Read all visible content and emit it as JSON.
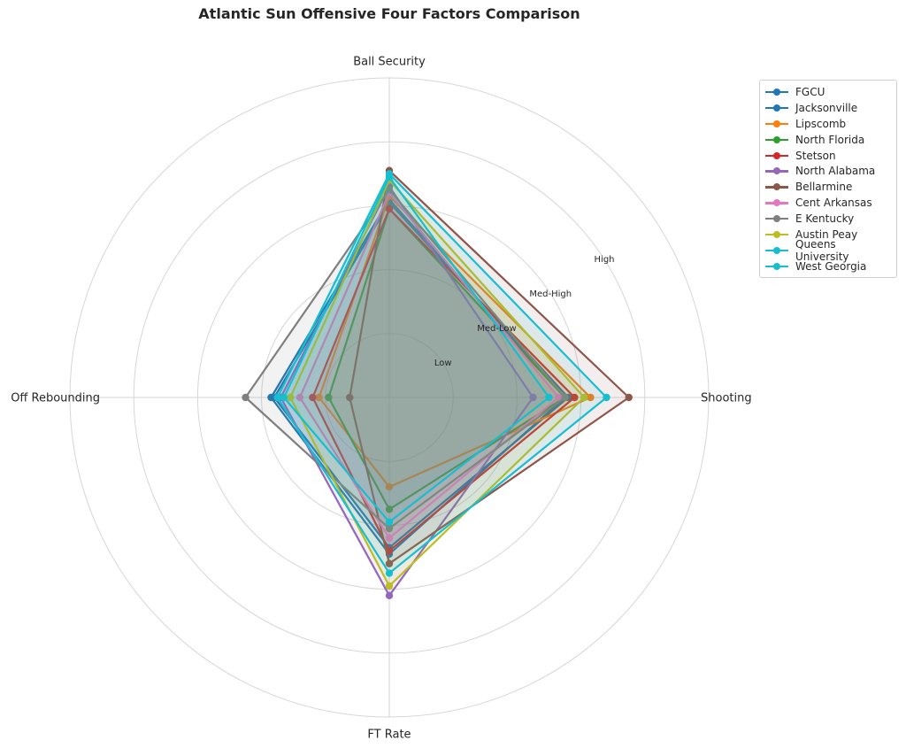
{
  "chart_data": {
    "type": "radar",
    "title": "Atlantic Sun Offensive Four Factors Comparison",
    "axes": [
      "Ball Security",
      "Shooting",
      "FT Rate",
      "Off Rebounding"
    ],
    "radial_labels": [
      "Low",
      "Med-Low",
      "Med-High",
      "High"
    ],
    "radial_ticks": [
      1,
      2,
      3,
      4
    ],
    "ylim": [
      0,
      5
    ],
    "grid": true,
    "legend_position": "upper-right, outside plot",
    "series": [
      {
        "name": "FGCU",
        "color": "#1f77b4",
        "values": [
          3.05,
          2.8,
          2.35,
          1.8
        ]
      },
      {
        "name": "Jacksonville",
        "color": "#1f77b4",
        "values": [
          3.1,
          2.75,
          2.45,
          1.85
        ]
      },
      {
        "name": "Lipscomb",
        "color": "#ff7f0e",
        "values": [
          3.15,
          3.15,
          1.4,
          1.1
        ]
      },
      {
        "name": "North Florida",
        "color": "#2ca02c",
        "values": [
          2.95,
          2.75,
          1.75,
          0.95
        ]
      },
      {
        "name": "Stetson",
        "color": "#d62728",
        "values": [
          2.95,
          2.9,
          2.4,
          1.2
        ]
      },
      {
        "name": "North Alabama",
        "color": "#9467bd",
        "values": [
          3.3,
          2.25,
          3.1,
          1.7
        ]
      },
      {
        "name": "Bellarmine",
        "color": "#8c564b",
        "values": [
          3.55,
          3.75,
          2.6,
          0.62
        ]
      },
      {
        "name": "Cent Arkansas",
        "color": "#e377c2",
        "values": [
          3.2,
          2.65,
          2.2,
          1.4
        ]
      },
      {
        "name": "E Kentucky",
        "color": "#7f7f7f",
        "values": [
          3.25,
          2.75,
          2.05,
          2.25
        ]
      },
      {
        "name": "Austin Peay",
        "color": "#bcbd22",
        "values": [
          3.4,
          3.05,
          2.95,
          1.55
        ]
      },
      {
        "name": "Queens University",
        "color": "#17becf",
        "values": [
          3.5,
          3.4,
          2.75,
          1.75
        ]
      },
      {
        "name": "West Georgia",
        "color": "#17becf",
        "values": [
          3.45,
          2.5,
          1.95,
          1.65
        ]
      }
    ]
  }
}
